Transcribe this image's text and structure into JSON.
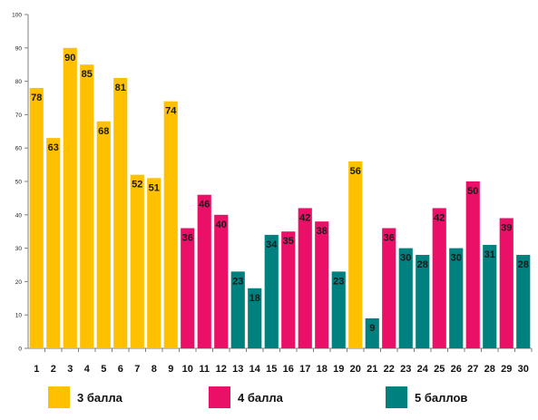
{
  "chart_data": {
    "type": "bar",
    "categories": [
      "1",
      "2",
      "3",
      "4",
      "5",
      "6",
      "7",
      "8",
      "9",
      "10",
      "11",
      "12",
      "13",
      "14",
      "15",
      "16",
      "17",
      "18",
      "19",
      "20",
      "21",
      "22",
      "23",
      "24",
      "25",
      "26",
      "27",
      "28",
      "29",
      "30"
    ],
    "values": [
      78,
      63,
      90,
      85,
      68,
      81,
      52,
      51,
      74,
      36,
      46,
      40,
      23,
      18,
      34,
      35,
      42,
      38,
      23,
      56,
      9,
      36,
      30,
      28,
      42,
      30,
      50,
      31,
      39,
      28
    ],
    "groups": [
      "3 балла",
      "3 балла",
      "3 балла",
      "3 балла",
      "3 балла",
      "3 балла",
      "3 балла",
      "3 балла",
      "3 балла",
      "4 балла",
      "4 балла",
      "4 балла",
      "5 баллов",
      "5 баллов",
      "5 баллов",
      "4 балла",
      "4 балла",
      "4 балла",
      "5 баллов",
      "3 балла",
      "5 баллов",
      "4 балла",
      "5 баллов",
      "5 баллов",
      "4 балла",
      "5 баллов",
      "4 балла",
      "5 баллов",
      "4 балла",
      "5 баллов"
    ],
    "ylim": [
      0,
      100
    ],
    "yticks": [
      0,
      10,
      20,
      30,
      40,
      50,
      60,
      70,
      80,
      90,
      100
    ],
    "grid": false,
    "legend_position": "bottom",
    "legend": [
      {
        "name": "3 балла",
        "color": "#FFC000"
      },
      {
        "name": "4 балла",
        "color": "#EB1067"
      },
      {
        "name": "5 баллов",
        "color": "#00807F"
      }
    ],
    "title": "",
    "xlabel": "",
    "ylabel": ""
  }
}
